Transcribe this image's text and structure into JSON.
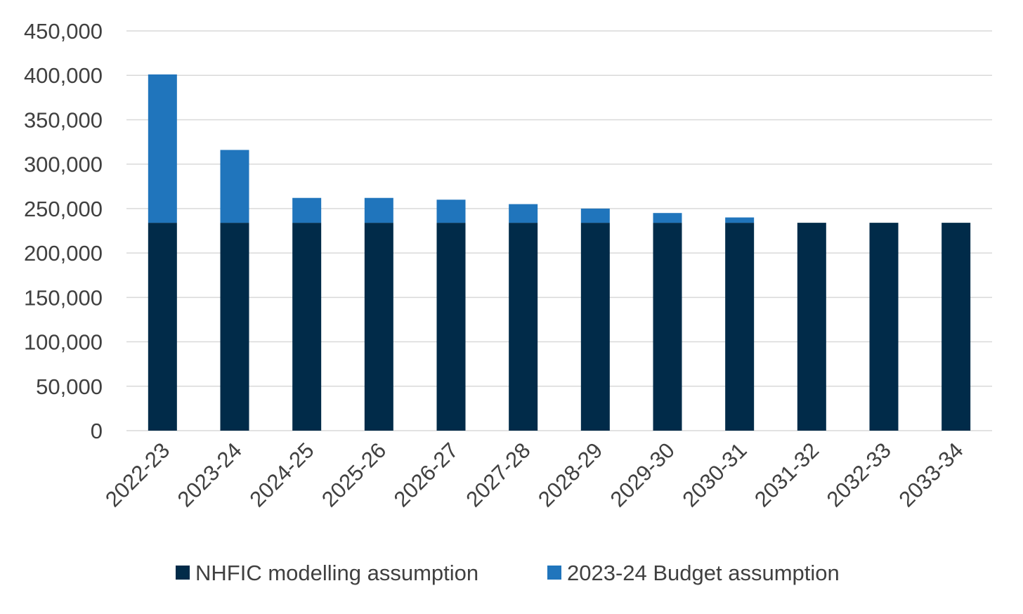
{
  "chart_data": {
    "type": "bar",
    "stacked": true,
    "title": "",
    "xlabel": "",
    "ylabel": "",
    "categories": [
      "2022-23",
      "2023-24",
      "2024-25",
      "2025-26",
      "2026-27",
      "2027-28",
      "2028-29",
      "2029-30",
      "2030-31",
      "2031-32",
      "2032-33",
      "2033-34"
    ],
    "series": [
      {
        "name": "NHFIC modelling assumption",
        "color": "#012b49",
        "values": [
          234000,
          234000,
          234000,
          234000,
          234000,
          234000,
          234000,
          234000,
          234000,
          234000,
          234000,
          234000
        ]
      },
      {
        "name": "2023-24 Budget assumption",
        "color": "#2075bc",
        "values": [
          167000,
          82000,
          28000,
          28000,
          26000,
          21000,
          16000,
          11000,
          6000,
          0,
          0,
          0
        ]
      }
    ],
    "ylim": [
      0,
      450000
    ],
    "yticks": [
      0,
      50000,
      100000,
      150000,
      200000,
      250000,
      300000,
      350000,
      400000,
      450000
    ],
    "ytick_labels": [
      "0",
      "50,000",
      "100,000",
      "150,000",
      "200,000",
      "250,000",
      "300,000",
      "350,000",
      "400,000",
      "450,000"
    ],
    "grid": true,
    "legend_position": "bottom",
    "x_tick_rotation": "45 degrees"
  }
}
